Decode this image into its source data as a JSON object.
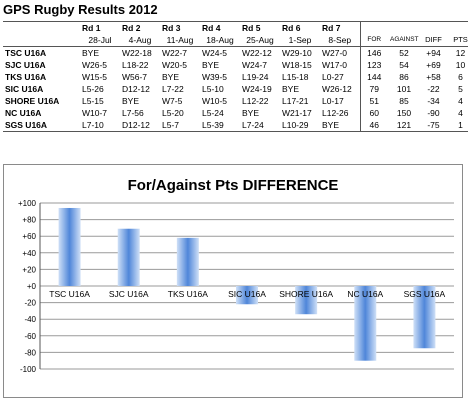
{
  "title": "GPS Rugby Results 2012",
  "table": {
    "rounds": [
      {
        "label": "Rd 1",
        "date": "28-Jul"
      },
      {
        "label": "Rd 2",
        "date": "4-Aug"
      },
      {
        "label": "Rd 3",
        "date": "11-Aug"
      },
      {
        "label": "Rd 4",
        "date": "18-Aug"
      },
      {
        "label": "Rd 5",
        "date": "25-Aug"
      },
      {
        "label": "Rd 6",
        "date": "1-Sep"
      },
      {
        "label": "Rd 7",
        "date": "8-Sep"
      }
    ],
    "stat_headers": [
      "FOR",
      "AGAINST",
      "DIFF",
      "PTS"
    ],
    "rows": [
      {
        "team": "TSC U16A",
        "results": [
          "BYE",
          "W22-18",
          "W22-7",
          "W24-5",
          "W22-12",
          "W29-10",
          "W27-0"
        ],
        "for": "146",
        "against": "52",
        "diff": "+94",
        "pts": "12"
      },
      {
        "team": "SJC U16A",
        "results": [
          "W26-5",
          "L18-22",
          "W20-5",
          "BYE",
          "W24-7",
          "W18-15",
          "W17-0"
        ],
        "for": "123",
        "against": "54",
        "diff": "+69",
        "pts": "10"
      },
      {
        "team": "TKS U16A",
        "results": [
          "W15-5",
          "W56-7",
          "BYE",
          "W39-5",
          "L19-24",
          "L15-18",
          "L0-27"
        ],
        "for": "144",
        "against": "86",
        "diff": "+58",
        "pts": "6"
      },
      {
        "team": "SIC U16A",
        "results": [
          "L5-26",
          "D12-12",
          "L7-22",
          "L5-10",
          "W24-19",
          "BYE",
          "W26-12"
        ],
        "for": "79",
        "against": "101",
        "diff": "-22",
        "pts": "5"
      },
      {
        "team": "SHORE U16A",
        "results": [
          "L5-15",
          "BYE",
          "W7-5",
          "W10-5",
          "L12-22",
          "L17-21",
          "L0-17"
        ],
        "for": "51",
        "against": "85",
        "diff": "-34",
        "pts": "4"
      },
      {
        "team": "NC U16A",
        "results": [
          "W10-7",
          "L7-56",
          "L5-20",
          "L5-24",
          "BYE",
          "W21-17",
          "L12-26"
        ],
        "for": "60",
        "against": "150",
        "diff": "-90",
        "pts": "4"
      },
      {
        "team": "SGS U16A",
        "results": [
          "L7-10",
          "D12-12",
          "L5-7",
          "L5-39",
          "L7-24",
          "L10-29",
          "BYE"
        ],
        "for": "46",
        "against": "121",
        "diff": "-75",
        "pts": "1"
      }
    ]
  },
  "chart_data": {
    "type": "bar",
    "title": "For/Against Pts DIFFERENCE",
    "categories": [
      "TSC U16A",
      "SJC U16A",
      "TKS U16A",
      "SIC U16A",
      "SHORE U16A",
      "NC U16A",
      "SGS U16A"
    ],
    "values": [
      94,
      69,
      58,
      -22,
      -34,
      -90,
      -75
    ],
    "ylim": [
      -100,
      100
    ],
    "yticks": [
      "+100",
      "+80",
      "+60",
      "+40",
      "+20",
      "+0",
      "-20",
      "-40",
      "-60",
      "-80",
      "-100"
    ],
    "grid": true,
    "legend": "none",
    "colors": {
      "bar_light": "#cfe0f7",
      "bar_dark": "#4f86d9",
      "grid": "#9a9a9a"
    }
  }
}
